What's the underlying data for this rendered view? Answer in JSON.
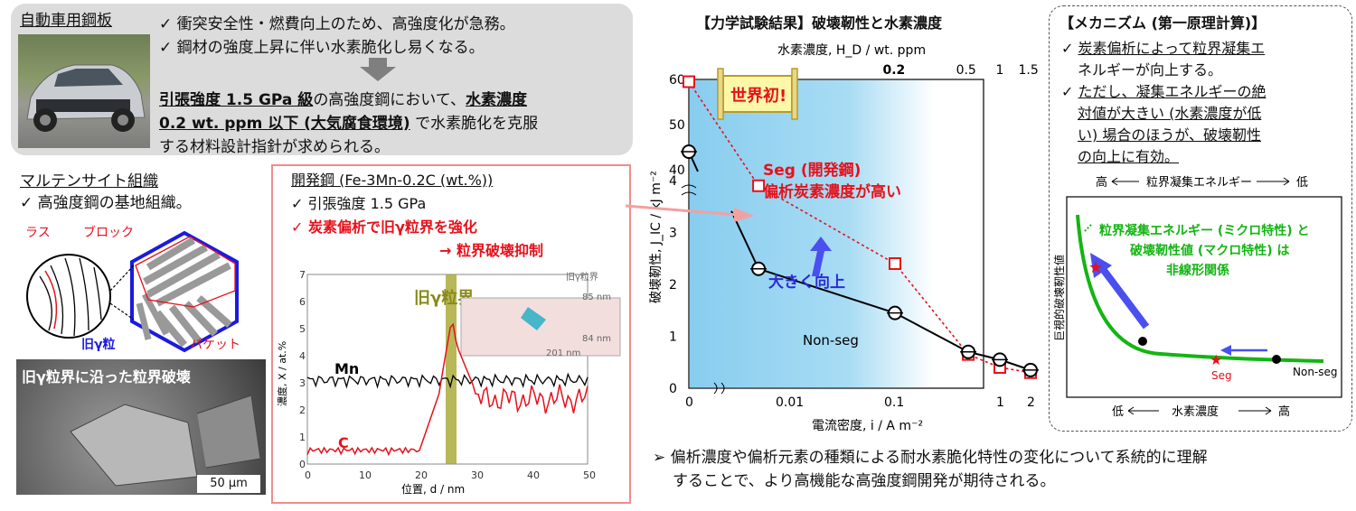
{
  "colors": {
    "red": "#e8101a",
    "green": "#13b513",
    "blue": "#4a4ff0",
    "bg_gray": "#dcdcdc",
    "plot_blue": "#88cdef"
  },
  "top": {
    "title": "自動車用鋼板",
    "bullet1": "衝突安全性・燃費向上のため、高強度化が急務。",
    "bullet2": "鋼材の強度上昇に伴い水素脆化し易くなる。",
    "p1a": "引張強度 1.5 GPa 級",
    "p1b": "の高強度鋼において、",
    "p1c": "水素濃度",
    "p2a": "0.2 wt. ppm 以下 (大気腐食環境)",
    "p2b": " で水素脆化を克服",
    "p3": "する材料設計指針が求められる。"
  },
  "marten": {
    "title": "マルテンサイト組織",
    "bullet": "高強度鋼の基地組織。",
    "lath": "ラス",
    "block": "ブロック",
    "old": "旧γ粒",
    "packet": "パケット",
    "sem_caption": "旧γ粒界に沿った粒界破壊",
    "scale": "50 μm"
  },
  "kaihatsu": {
    "title": "開発鋼 (Fe-3Mn-0.2C (wt.%))",
    "bullet1": "引張強度 1.5 GPa",
    "bullet2": "炭素偏析で旧γ粒界を強化",
    "bullet3": "→ 粒界破壊抑制",
    "old_boundary": "旧γ粒界",
    "ylabel": "濃度, X / at.%",
    "xlabel": "位置, d / nm",
    "mn": "Mn",
    "c": "C",
    "tip_label": "旧γ粒界",
    "dim1": "85 nm",
    "dim2": "84 nm",
    "dim3": "201 nm"
  },
  "chart_data": {
    "type": "scatter",
    "title": "【力学試験結果】破壊靭性と水素濃度",
    "top_axis_label": "水素濃度, H_D / wt. ppm",
    "top_ticks": [
      "0.2",
      "0.5",
      "1",
      "1.5"
    ],
    "xlabel": "電流密度, i / A m⁻²",
    "ylabel": "破壊靭性, J_IC / kJ m⁻²",
    "x_ticks": [
      "0",
      "0.01",
      "0.1",
      "1",
      "2"
    ],
    "y_ticks": [
      "0",
      "1",
      "2",
      "3",
      "4",
      "40",
      "50",
      "60"
    ],
    "series": [
      {
        "name": "Seg",
        "x": [
          0,
          0.005,
          0.1,
          0.5,
          1,
          2
        ],
        "y": [
          59.5,
          3.9,
          2.4,
          0.65,
          0.4,
          0.3
        ]
      },
      {
        "name": "Non-seg",
        "x": [
          0,
          0.005,
          0.1,
          0.5,
          1,
          2
        ],
        "y": [
          44,
          2.3,
          1.45,
          0.7,
          0.55,
          0.35
        ]
      }
    ],
    "banner": "世界初!",
    "seg_label1": "Seg (開発鋼)",
    "seg_label2": "偏析炭素濃度が高い",
    "up_label": "大きく向上",
    "nonseg_label": "Non-seg"
  },
  "mech": {
    "title": "【メカニズム (第一原理計算)】",
    "b1l1": "炭素偏析によって粒界凝集エ",
    "b1l2": "ネルギーが向上する。",
    "b2l1": "ただし、凝集エネルギーの絶",
    "b2l2": "対値が大きい (水素濃度が低",
    "b2l3": "い) 場合のほうが、破壊靭性",
    "b2l4": "の向上に有効。",
    "top_high": "高",
    "top_mid": "粒界凝集エネルギー",
    "top_low": "低",
    "ylabel": "巨視的破壊靭性値",
    "g1": "粒界凝集エネルギー (ミクロ特性) と",
    "g2": "破壊靭性値 (マクロ特性) は",
    "g3": "非線形関係",
    "seg": "Seg",
    "nonseg": "Non-seg",
    "bot_low": "低",
    "bot_mid": "水素濃度",
    "bot_high": "高"
  },
  "conclusion": {
    "l1": "偏析濃度や偏析元素の種類による耐水素脆化特性の変化について系統的に理解",
    "l2": "することで、より高機能な高強度鋼開発が期待される。"
  }
}
